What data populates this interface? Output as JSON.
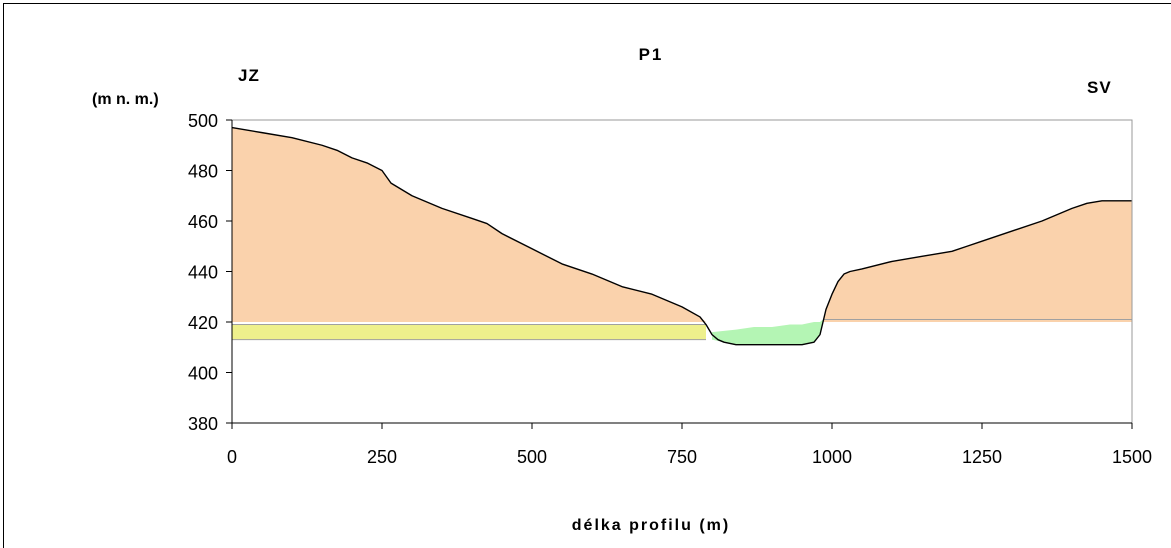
{
  "chart_data": {
    "type": "area",
    "title": "P1",
    "left_label": "JZ",
    "right_label": "SV",
    "ylabel": "(m n. m.)",
    "xlabel": "délka profilu (m)",
    "xlim": [
      0,
      1500
    ],
    "ylim": [
      380,
      500
    ],
    "xticks": [
      "0",
      "250",
      "500",
      "750",
      "1000",
      "1250",
      "1500"
    ],
    "yticks": [
      "380",
      "400",
      "420",
      "440",
      "460",
      "480",
      "500"
    ],
    "grid": false,
    "legend": "none",
    "colors": {
      "terrain": "#FAD2AC",
      "water_level_band": "#EEF08C",
      "river": "#B4F5B4",
      "outline": "#000000",
      "line": "#A0A0A0",
      "plot_border": "#999999",
      "frame": "#000000"
    },
    "series": [
      {
        "key": "terrain_profile",
        "x": [
          0,
          50,
          100,
          150,
          175,
          200,
          225,
          250,
          265,
          300,
          350,
          400,
          425,
          450,
          500,
          550,
          600,
          650,
          700,
          750,
          780,
          790,
          800,
          810,
          820,
          840,
          870,
          900,
          930,
          950,
          970,
          980,
          985,
          990,
          1000,
          1010,
          1020,
          1030,
          1050,
          1100,
          1150,
          1200,
          1225,
          1250,
          1300,
          1350,
          1400,
          1425,
          1450,
          1500
        ],
        "y": [
          497,
          495,
          493,
          490,
          488,
          485,
          483,
          480,
          475,
          470,
          465,
          461,
          459,
          455,
          449,
          443,
          439,
          434,
          431,
          426,
          422,
          419,
          415,
          413,
          412,
          411,
          411,
          411,
          411,
          411,
          412,
          415,
          420,
          425,
          431,
          436,
          439,
          440,
          441,
          444,
          446,
          448,
          450,
          452,
          456,
          460,
          465,
          467,
          468,
          468
        ]
      },
      {
        "key": "water_level_band",
        "x": [
          0,
          790
        ],
        "y_top": 419,
        "y_bottom": 413
      },
      {
        "key": "river_bed",
        "x": [
          800,
          840,
          870,
          900,
          930,
          950,
          970,
          980,
          985
        ],
        "top": [
          416,
          417,
          418,
          418,
          419,
          419,
          420,
          420,
          421
        ],
        "bottom": [
          413,
          411,
          411,
          411,
          411,
          411,
          412,
          415,
          421
        ]
      },
      {
        "key": "right_level_line",
        "x": [
          985,
          1500
        ],
        "y": [
          421,
          421
        ]
      }
    ]
  }
}
